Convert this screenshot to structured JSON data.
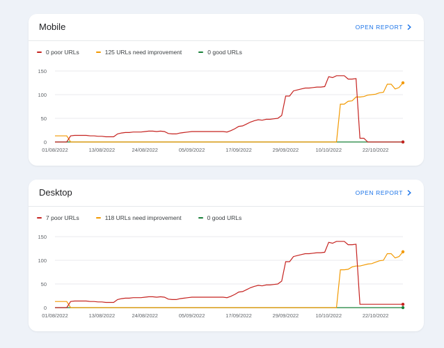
{
  "dates": [
    "01/08/2022",
    "02/08/2022",
    "03/08/2022",
    "04/08/2022",
    "05/08/2022",
    "06/08/2022",
    "07/08/2022",
    "08/08/2022",
    "09/08/2022",
    "10/08/2022",
    "11/08/2022",
    "12/08/2022",
    "13/08/2022",
    "14/08/2022",
    "15/08/2022",
    "16/08/2022",
    "17/08/2022",
    "18/08/2022",
    "19/08/2022",
    "20/08/2022",
    "21/08/2022",
    "22/08/2022",
    "23/08/2022",
    "24/08/2022",
    "25/08/2022",
    "26/08/2022",
    "27/08/2022",
    "28/08/2022",
    "29/08/2022",
    "30/08/2022",
    "31/08/2022",
    "01/09/2022",
    "02/09/2022",
    "03/09/2022",
    "04/09/2022",
    "05/09/2022",
    "06/09/2022",
    "07/09/2022",
    "08/09/2022",
    "09/09/2022",
    "10/09/2022",
    "11/09/2022",
    "12/09/2022",
    "13/09/2022",
    "14/09/2022",
    "15/09/2022",
    "16/09/2022",
    "17/09/2022",
    "18/09/2022",
    "19/09/2022",
    "20/09/2022",
    "21/09/2022",
    "22/09/2022",
    "23/09/2022",
    "24/09/2022",
    "25/09/2022",
    "26/09/2022",
    "27/09/2022",
    "28/09/2022",
    "29/09/2022",
    "30/09/2022",
    "01/10/2022",
    "02/10/2022",
    "03/10/2022",
    "04/10/2022",
    "05/10/2022",
    "06/10/2022",
    "07/10/2022",
    "08/10/2022",
    "09/10/2022",
    "10/10/2022",
    "11/10/2022",
    "12/10/2022",
    "13/10/2022",
    "14/10/2022",
    "15/10/2022",
    "16/10/2022",
    "17/10/2022",
    "18/10/2022",
    "19/10/2022",
    "20/10/2022",
    "21/10/2022",
    "22/10/2022",
    "23/10/2022",
    "24/10/2022",
    "25/10/2022",
    "26/10/2022",
    "27/10/2022",
    "28/10/2022",
    "29/10/2022"
  ],
  "poor_common": [
    0,
    0,
    0,
    0,
    13,
    14,
    14,
    14,
    14,
    13,
    13,
    12,
    12,
    11,
    11,
    11,
    17,
    19,
    20,
    20,
    21,
    21,
    21,
    22,
    23,
    23,
    22,
    23,
    22,
    18,
    17,
    17,
    19,
    20,
    21,
    22,
    22,
    22,
    22,
    22,
    22,
    22,
    22,
    22,
    21,
    24,
    28,
    33,
    34,
    38,
    42,
    45,
    47,
    46,
    48,
    48,
    49,
    50,
    56,
    97,
    97,
    108,
    110,
    112,
    114,
    114,
    115,
    116,
    116,
    117,
    138,
    136,
    140,
    140,
    140,
    133,
    133,
    134
  ],
  "colors": {
    "poor": "#c5221f",
    "improve": "#f29900",
    "good": "#188038",
    "grid": "#e8eaed"
  },
  "open_report_label": "OPEN REPORT",
  "cards": [
    {
      "title": "Mobile",
      "legend": {
        "poor": "0 poor URLs",
        "improve": "125 URLs need improvement",
        "good": "0 good URLs"
      },
      "chart_data": {
        "type": "line",
        "ylim": [
          0,
          150
        ],
        "yticks": [
          0,
          50,
          100,
          150
        ],
        "xticks": [
          "01/08/2022",
          "13/08/2022",
          "24/08/2022",
          "05/09/2022",
          "17/09/2022",
          "29/09/2022",
          "10/10/2022",
          "22/10/2022"
        ],
        "series": [
          {
            "name": "0 poor URLs",
            "color_key": "poor",
            "tail_mode": "drop",
            "tail_value": 0
          },
          {
            "name": "125 URLs need improvement",
            "color_key": "improve",
            "early": [
              13,
              13,
              13,
              13
            ],
            "late": [
              80,
              80,
              86,
              87,
              95,
              95,
              96,
              99,
              100,
              101,
              104,
              105,
              122,
              122,
              112,
              115,
              125
            ]
          },
          {
            "name": "0 good URLs",
            "color_key": "good",
            "value": 0
          }
        ]
      }
    },
    {
      "title": "Desktop",
      "legend": {
        "poor": "7 poor URLs",
        "improve": "118 URLs need improvement",
        "good": "0 good URLs"
      },
      "chart_data": {
        "type": "line",
        "ylim": [
          0,
          150
        ],
        "yticks": [
          0,
          50,
          100,
          150
        ],
        "xticks": [
          "01/08/2022",
          "13/08/2022",
          "24/08/2022",
          "05/09/2022",
          "17/09/2022",
          "29/09/2022",
          "10/10/2022",
          "22/10/2022"
        ],
        "series": [
          {
            "name": "7 poor URLs",
            "color_key": "poor",
            "tail_mode": "flat",
            "tail_value": 7
          },
          {
            "name": "118 URLs need improvement",
            "color_key": "improve",
            "early": [
              13,
              13,
              13,
              13
            ],
            "late": [
              80,
              80,
              81,
              86,
              88,
              88,
              90,
              92,
              93,
              96,
              99,
              100,
              114,
              114,
              105,
              108,
              118
            ]
          },
          {
            "name": "0 good URLs",
            "color_key": "good",
            "value": 0
          }
        ]
      }
    }
  ]
}
